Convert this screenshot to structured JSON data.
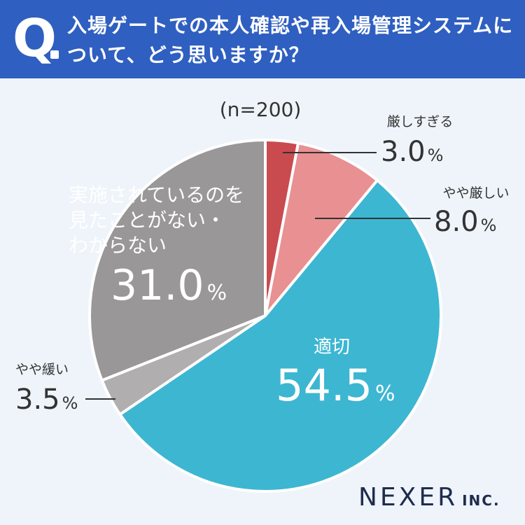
{
  "question": {
    "mark": "Q",
    "line1": "入場ゲートでの本人確認や再入場管理システムに",
    "line2": "ついて、どう思いますか？"
  },
  "chart_data": {
    "type": "pie",
    "sample_size": "(n=200)",
    "unit": "%",
    "start": "top",
    "direction": "clockwise",
    "slices": [
      {
        "label": "厳しすぎる",
        "value": 3.0,
        "value_text": "3.0",
        "color": "#c94b50"
      },
      {
        "label": "やや厳しい",
        "value": 8.0,
        "value_text": "8.0",
        "color": "#e89092"
      },
      {
        "label": "適切",
        "value": 54.5,
        "value_text": "54.5",
        "color": "#3db6d2"
      },
      {
        "label": "やや緩い",
        "value": 3.5,
        "value_text": "3.5",
        "color": "#b1aeb0"
      },
      {
        "label_lines": [
          "実施されているのを",
          "見たことがない・",
          "わからない"
        ],
        "value": 31.0,
        "value_text": "31.0",
        "color": "#999798"
      }
    ]
  },
  "logo": {
    "name": "NEXER",
    "suffix": "INC."
  }
}
